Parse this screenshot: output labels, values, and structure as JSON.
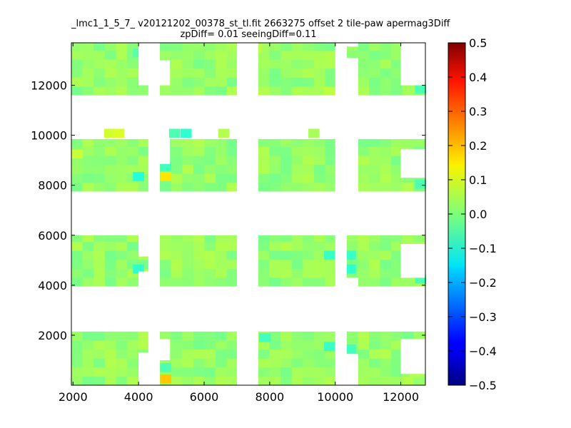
{
  "chart_data": {
    "type": "heatmap",
    "title": "_lmc1_1_5_7_ v20121202_00378_st_tl.fit 2663275 offset 2 tile-paw apermag3Diff",
    "subtitle": "zpDiff= 0.01 seeingDiff=0.11",
    "xlabel": "",
    "ylabel": "",
    "xlim": [
      1950,
      12750
    ],
    "ylim": [
      0,
      13700
    ],
    "xticks": [
      "2000",
      "4000",
      "6000",
      "8000",
      "10000",
      "12000"
    ],
    "yticks": [
      "2000",
      "4000",
      "6000",
      "8000",
      "10000",
      "12000"
    ],
    "colormap": "jet",
    "colorbar": {
      "range": [
        -0.5,
        0.5
      ],
      "ticks": [
        "0.5",
        "0.4",
        "0.3",
        "0.2",
        "0.1",
        "0.0",
        "−0.1",
        "−0.2",
        "−0.3",
        "−0.4",
        "−0.5"
      ]
    },
    "typical_value": 0.02,
    "column_blocks": [
      {
        "x": [
          1950,
          4300
        ],
        "rows": [
          [
            11600,
            13700
          ],
          [
            7750,
            9850
          ],
          [
            3950,
            6000
          ],
          [
            0,
            2150
          ]
        ]
      },
      {
        "x": [
          4650,
          7000
        ],
        "rows": [
          [
            11600,
            13700
          ],
          [
            7750,
            9850
          ],
          [
            3950,
            6000
          ],
          [
            0,
            2150
          ]
        ]
      },
      {
        "x": [
          7650,
          10000
        ],
        "rows": [
          [
            11600,
            13700
          ],
          [
            7750,
            9850
          ],
          [
            3950,
            6000
          ],
          [
            0,
            2150
          ]
        ]
      },
      {
        "x": [
          10350,
          12750
        ],
        "rows": [
          [
            11600,
            13700
          ],
          [
            7750,
            9850
          ],
          [
            3950,
            6000
          ],
          [
            0,
            2150
          ]
        ]
      }
    ],
    "highlight_cells": [
      {
        "x": 4830,
        "y": 8350,
        "value": 0.15
      },
      {
        "x": 4830,
        "y": 250,
        "value": 0.18
      },
      {
        "x": 3120,
        "y": 10080,
        "value": 0.08
      },
      {
        "x": 3400,
        "y": 10080,
        "value": 0.09
      },
      {
        "x": 2130,
        "y": 9250,
        "value": 0.07
      },
      {
        "x": 9350,
        "y": 10080,
        "value": 0.04
      },
      {
        "x": 6600,
        "y": 10080,
        "value": 0.05
      },
      {
        "x": 7600,
        "y": 13480,
        "value": 0.06
      },
      {
        "x": 9830,
        "y": 11750,
        "value": 0.06
      },
      {
        "x": 12430,
        "y": 500,
        "value": 0.05
      },
      {
        "x": 5450,
        "y": 10080,
        "value": -0.08
      },
      {
        "x": 5100,
        "y": 10080,
        "value": -0.05
      },
      {
        "x": 4830,
        "y": 8750,
        "value": -0.06
      },
      {
        "x": 4830,
        "y": 700,
        "value": -0.05
      },
      {
        "x": 4000,
        "y": 8350,
        "value": -0.09
      },
      {
        "x": 4000,
        "y": 4650,
        "value": -0.08
      },
      {
        "x": 10460,
        "y": 4650,
        "value": -0.08
      },
      {
        "x": 10460,
        "y": 5200,
        "value": -0.07
      },
      {
        "x": 10460,
        "y": 1450,
        "value": -0.06
      },
      {
        "x": 9830,
        "y": 5200,
        "value": -0.07
      },
      {
        "x": 7850,
        "y": 1900,
        "value": -0.06
      },
      {
        "x": 9830,
        "y": 1550,
        "value": -0.07
      },
      {
        "x": 12600,
        "y": 11850,
        "value": -0.05
      },
      {
        "x": 12600,
        "y": 8050,
        "value": -0.05
      },
      {
        "x": 12600,
        "y": 4250,
        "value": -0.05
      },
      {
        "x": 4000,
        "y": 13300,
        "value": -0.04
      }
    ],
    "blank_regions": [
      {
        "x": [
          4300,
          4650
        ],
        "y": [
          0,
          13700
        ]
      },
      {
        "x": [
          7000,
          7650
        ],
        "y": [
          0,
          13700
        ]
      },
      {
        "x": [
          10000,
          10350
        ],
        "y": [
          0,
          13700
        ]
      },
      {
        "x": [
          4300,
          4650
        ],
        "y": [
          0,
          13700
        ]
      },
      {
        "x": [
          4000,
          4300
        ],
        "y": [
          12000,
          13700
        ]
      },
      {
        "x": [
          4000,
          4300
        ],
        "y": [
          0,
          1300
        ]
      },
      {
        "x": [
          4000,
          4300
        ],
        "y": [
          3950,
          4550
        ]
      },
      {
        "x": [
          4000,
          4300
        ],
        "y": [
          5150,
          6000
        ]
      },
      {
        "x": [
          4650,
          4960
        ],
        "y": [
          12000,
          13000
        ]
      },
      {
        "x": [
          4650,
          4960
        ],
        "y": [
          8850,
          9850
        ]
      },
      {
        "x": [
          4650,
          4960
        ],
        "y": [
          1000,
          1850
        ]
      },
      {
        "x": [
          1950,
          2330
        ],
        "y": [
          9850,
          9850
        ]
      },
      {
        "x": [
          10350,
          10700
        ],
        "y": [
          11600,
          13100
        ]
      },
      {
        "x": [
          10350,
          10700
        ],
        "y": [
          13550,
          13700
        ]
      },
      {
        "x": [
          10350,
          10700
        ],
        "y": [
          7750,
          9850
        ]
      },
      {
        "x": [
          10350,
          10700
        ],
        "y": [
          3950,
          4300
        ]
      },
      {
        "x": [
          10350,
          10700
        ],
        "y": [
          0,
          1250
        ]
      },
      {
        "x": [
          12000,
          12750
        ],
        "y": [
          12000,
          13700
        ]
      },
      {
        "x": [
          12000,
          12750
        ],
        "y": [
          8300,
          9450
        ]
      },
      {
        "x": [
          12000,
          12750
        ],
        "y": [
          4300,
          5650
        ]
      },
      {
        "x": [
          12000,
          12750
        ],
        "y": [
          450,
          1850
        ]
      }
    ]
  }
}
